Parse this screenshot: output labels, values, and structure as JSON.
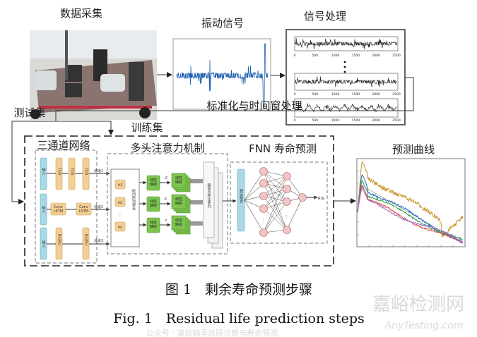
{
  "stages": {
    "data_acquisition": "数据采集",
    "vibration_signal": "振动信号",
    "signal_processing": "信号处理",
    "normalization": "标准化与时间窗处理",
    "test_set": "测试集",
    "train_set": "训练集",
    "three_channel": "三通道网络",
    "multi_head": "多头注意力机制",
    "fnn": "FNN 寿命预测",
    "prediction_curve": "预测曲线"
  },
  "signal_ticks": [
    "0",
    "500",
    "1000",
    "1500",
    "2000",
    "2500"
  ],
  "channels": {
    "input": "输入",
    "tcn": "TCN",
    "conv_lstm": [
      "Conv",
      "LSTM"
    ],
    "bigru": "BiGRU",
    "labels": [
      "通道1",
      "通道2",
      "通道3"
    ]
  },
  "attention": {
    "features": [
      "h1",
      "h2",
      "hk"
    ],
    "ellipsis": "⋮",
    "ts_feature": "时间序列特征",
    "linear": "线性映射",
    "qkv": [
      "Q",
      "K",
      "V"
    ],
    "scaled": "缩放点积注意力"
  },
  "fnn_block": {
    "fusion": "特征融合",
    "output": "RUL"
  },
  "curve_colors": [
    "#c8962a",
    "#2a6cc4",
    "#3aa04a",
    "#e03a3a",
    "#9a6ac8"
  ],
  "caption": {
    "zh": "图 1　剩余寿命预测步骤",
    "en": "Fig. 1　Residual life prediction steps"
  },
  "watermark": {
    "brand": "嘉峪检测网",
    "site": "AnyTesting.com",
    "account": "公众号 · 滚动轴承故障诊断与寿命预测"
  }
}
